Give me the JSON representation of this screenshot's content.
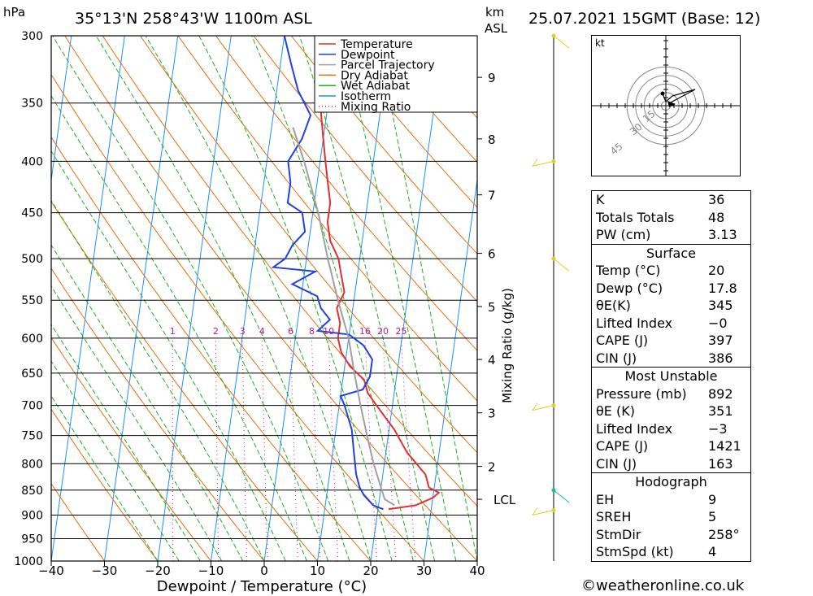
{
  "header": {
    "pressure_unit": "hPa",
    "location": "35°13'N  258°43'W  1100m  ASL",
    "height_unit_km": "km",
    "height_unit_asl": "ASL",
    "datetime": "25.07.2021  15GMT  (Base: 12)"
  },
  "footer": {
    "copyright": "©weatheronline.co.uk"
  },
  "chart_data": {
    "type": "line",
    "title": "",
    "xlabel": "Dewpoint / Temperature (°C)",
    "ylabel": "hPa",
    "secondary_ylabel": "Mixing Ratio (g/kg)",
    "xlim": [
      -40,
      40
    ],
    "ylim": [
      1000,
      300
    ],
    "x_ticks": [
      "−40",
      "−30",
      "−20",
      "−10",
      "0",
      "10",
      "20",
      "30",
      "40"
    ],
    "pressure_levels": [
      300,
      350,
      400,
      450,
      500,
      550,
      600,
      650,
      700,
      750,
      800,
      850,
      900,
      950,
      1000
    ],
    "height_ticks_km": [
      {
        "label": "9",
        "p": 330
      },
      {
        "label": "8",
        "p": 380
      },
      {
        "label": "7",
        "p": 432
      },
      {
        "label": "6",
        "p": 494
      },
      {
        "label": "5",
        "p": 558
      },
      {
        "label": "4",
        "p": 630
      },
      {
        "label": "3",
        "p": 712
      },
      {
        "label": "2",
        "p": 805
      },
      {
        "label": "LCL",
        "p": 868
      }
    ],
    "mixing_ratio_labels": [
      "1",
      "2",
      "3",
      "4",
      "6",
      "8",
      "10",
      "16",
      "20",
      "25"
    ],
    "mixing_ratio_values": [
      1,
      2,
      3,
      4,
      6,
      8,
      10,
      16,
      20,
      25
    ],
    "legend": {
      "placement": "top-right",
      "items": [
        {
          "name": "Temperature",
          "color": "#e03030"
        },
        {
          "name": "Dewpoint",
          "color": "#2040e0"
        },
        {
          "name": "Parcel Trajectory",
          "color": "#a0a0a0"
        },
        {
          "name": "Dry Adiabat",
          "color": "#e07010"
        },
        {
          "name": "Wet Adiabat",
          "color": "#20b020"
        },
        {
          "name": "Isotherm",
          "color": "#2090e0"
        },
        {
          "name": "Mixing Ratio",
          "color": "#d020a0"
        }
      ]
    },
    "series": [
      {
        "name": "Temperature",
        "color": "#e03030",
        "points": [
          [
            888,
            22
          ],
          [
            880,
            27
          ],
          [
            865,
            30
          ],
          [
            855,
            31
          ],
          [
            845,
            29
          ],
          [
            820,
            28
          ],
          [
            780,
            24
          ],
          [
            740,
            21
          ],
          [
            700,
            17
          ],
          [
            680,
            15
          ],
          [
            660,
            14
          ],
          [
            640,
            11
          ],
          [
            620,
            9
          ],
          [
            600,
            8
          ],
          [
            580,
            8
          ],
          [
            560,
            7
          ],
          [
            540,
            8
          ],
          [
            520,
            7
          ],
          [
            500,
            6
          ],
          [
            480,
            4
          ],
          [
            460,
            3
          ],
          [
            440,
            3
          ],
          [
            420,
            2
          ],
          [
            400,
            1
          ],
          [
            380,
            0
          ],
          [
            360,
            -1
          ],
          [
            340,
            -2
          ],
          [
            320,
            -3
          ],
          [
            300,
            -4
          ]
        ]
      },
      {
        "name": "Dewpoint",
        "color": "#2040e0",
        "points": [
          [
            888,
            21
          ],
          [
            880,
            19
          ],
          [
            860,
            17
          ],
          [
            845,
            16
          ],
          [
            820,
            15
          ],
          [
            780,
            14
          ],
          [
            740,
            13
          ],
          [
            700,
            11
          ],
          [
            685,
            10
          ],
          [
            675,
            14
          ],
          [
            655,
            15
          ],
          [
            630,
            15
          ],
          [
            610,
            13
          ],
          [
            595,
            10
          ],
          [
            590,
            4
          ],
          [
            575,
            6
          ],
          [
            560,
            4
          ],
          [
            545,
            3
          ],
          [
            530,
            -2
          ],
          [
            515,
            2
          ],
          [
            510,
            -6
          ],
          [
            500,
            -4
          ],
          [
            485,
            -3
          ],
          [
            470,
            -1
          ],
          [
            450,
            -2
          ],
          [
            440,
            -5
          ],
          [
            420,
            -5
          ],
          [
            400,
            -6
          ],
          [
            380,
            -4
          ],
          [
            360,
            -3
          ],
          [
            340,
            -6
          ],
          [
            320,
            -8
          ],
          [
            300,
            -10
          ]
        ]
      },
      {
        "name": "Parcel Trajectory",
        "color": "#a0a0a0",
        "points": [
          [
            880,
            23
          ],
          [
            868,
            21
          ],
          [
            845,
            20
          ],
          [
            800,
            18
          ],
          [
            750,
            16
          ],
          [
            700,
            14
          ],
          [
            650,
            12
          ],
          [
            600,
            10
          ],
          [
            550,
            7
          ],
          [
            500,
            4
          ],
          [
            450,
            1
          ],
          [
            400,
            -3
          ],
          [
            370,
            -6
          ]
        ]
      }
    ],
    "wind_barbs_km": [
      {
        "p": 300,
        "flag": "yellow"
      },
      {
        "p": 400,
        "flag": "yellow"
      },
      {
        "p": 500,
        "flag": "yellow"
      },
      {
        "p": 700,
        "flag": "yellow"
      },
      {
        "p": 850,
        "flag": "cyan"
      },
      {
        "p": 890,
        "flag": "yellow"
      }
    ]
  },
  "hodograph": {
    "unit": "kt",
    "ring_labels": [
      "15",
      "30",
      "45"
    ]
  },
  "indices": {
    "top": [
      {
        "label": "K",
        "value": "36"
      },
      {
        "label": "Totals Totals",
        "value": "48"
      },
      {
        "label": "PW (cm)",
        "value": "3.13"
      }
    ],
    "surface_title": "Surface",
    "surface": [
      {
        "label": "Temp (°C)",
        "value": "20"
      },
      {
        "label": "Dewp (°C)",
        "value": "17.8"
      },
      {
        "label": "θE(K)",
        "value": "345"
      },
      {
        "label": "Lifted Index",
        "value": "−0"
      },
      {
        "label": "CAPE (J)",
        "value": "397"
      },
      {
        "label": "CIN (J)",
        "value": "386"
      }
    ],
    "unstable_title": "Most Unstable",
    "unstable": [
      {
        "label": "Pressure (mb)",
        "value": "892"
      },
      {
        "label": "θE (K)",
        "value": "351"
      },
      {
        "label": "Lifted Index",
        "value": "−3"
      },
      {
        "label": "CAPE (J)",
        "value": "1421"
      },
      {
        "label": "CIN (J)",
        "value": "163"
      }
    ],
    "hodo_title": "Hodograph",
    "hodo": [
      {
        "label": "EH",
        "value": "9"
      },
      {
        "label": "SREH",
        "value": "5"
      },
      {
        "label": "StmDir",
        "value": "258°"
      },
      {
        "label": "StmSpd (kt)",
        "value": "4"
      }
    ]
  }
}
